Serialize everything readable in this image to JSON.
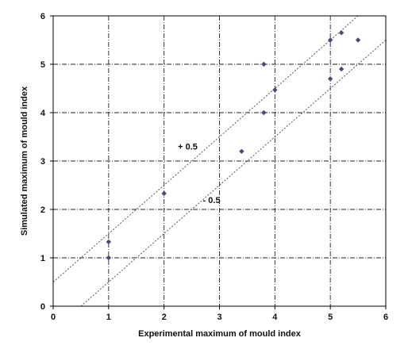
{
  "chart_data": {
    "type": "scatter",
    "xlabel": "Experimental maximum of mould index",
    "ylabel": "Simulated maximum of mould index",
    "xlim": [
      0,
      6
    ],
    "ylim": [
      0,
      6
    ],
    "xticks": [
      0,
      1,
      2,
      3,
      4,
      5,
      6
    ],
    "yticks": [
      0,
      1,
      2,
      3,
      4,
      5,
      6
    ],
    "grid": true,
    "grid_style": "dash-dot",
    "points": [
      {
        "x": 1.0,
        "y": 1.33
      },
      {
        "x": 1.0,
        "y": 1.0
      },
      {
        "x": 2.0,
        "y": 2.33
      },
      {
        "x": 3.4,
        "y": 3.2
      },
      {
        "x": 3.8,
        "y": 5.0
      },
      {
        "x": 3.8,
        "y": 4.0
      },
      {
        "x": 4.0,
        "y": 4.47
      },
      {
        "x": 5.0,
        "y": 5.5
      },
      {
        "x": 5.2,
        "y": 5.65
      },
      {
        "x": 5.5,
        "y": 5.5
      },
      {
        "x": 5.0,
        "y": 4.7
      },
      {
        "x": 5.2,
        "y": 4.9
      }
    ],
    "reference_lines": [
      {
        "label": "+ 0.5",
        "offset": 0.5,
        "label_at": [
          2.25,
          3.3
        ]
      },
      {
        "label": "- 0.5",
        "offset": -0.5,
        "label_at": [
          2.7,
          2.2
        ]
      }
    ],
    "colors": {
      "points": "#4a4a7a",
      "axis": "#000000",
      "grid": "#222222",
      "reference": "#555555"
    }
  }
}
